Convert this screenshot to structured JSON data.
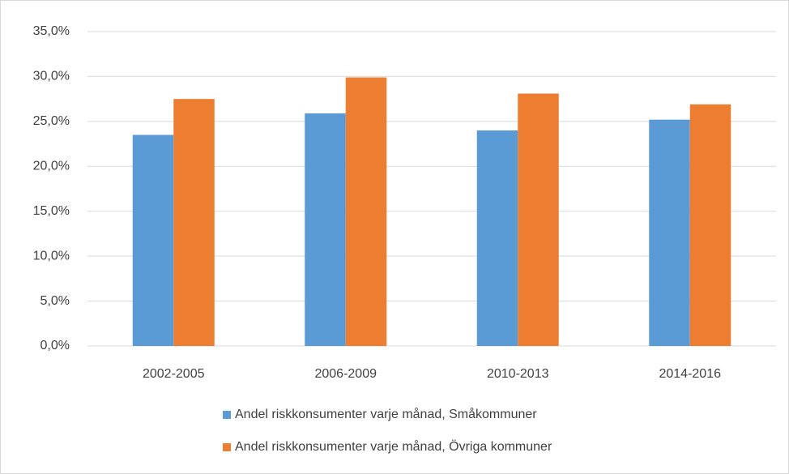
{
  "chart_data": {
    "type": "bar",
    "categories": [
      "2002-2005",
      "2006-2009",
      "2010-2013",
      "2014-2016"
    ],
    "series": [
      {
        "name": "Andel riskkonsumenter varje månad, Småkommuner",
        "color": "#5b9bd5",
        "values": [
          23.5,
          25.9,
          24.0,
          25.2
        ]
      },
      {
        "name": "Andel riskkonsumenter varje månad, Övriga kommuner",
        "color": "#ed7d31",
        "values": [
          27.5,
          29.9,
          28.1,
          26.9
        ]
      }
    ],
    "ylim": [
      0,
      35
    ],
    "yticks": [
      {
        "value": 0,
        "label": "0,0%"
      },
      {
        "value": 5,
        "label": "5,0%"
      },
      {
        "value": 10,
        "label": "10,0%"
      },
      {
        "value": 15,
        "label": "15,0%"
      },
      {
        "value": 20,
        "label": "20,0%"
      },
      {
        "value": 25,
        "label": "25,0%"
      },
      {
        "value": 30,
        "label": "30,0%"
      },
      {
        "value": 35,
        "label": "35,0%"
      }
    ],
    "grid": true,
    "legend": "bottom"
  }
}
